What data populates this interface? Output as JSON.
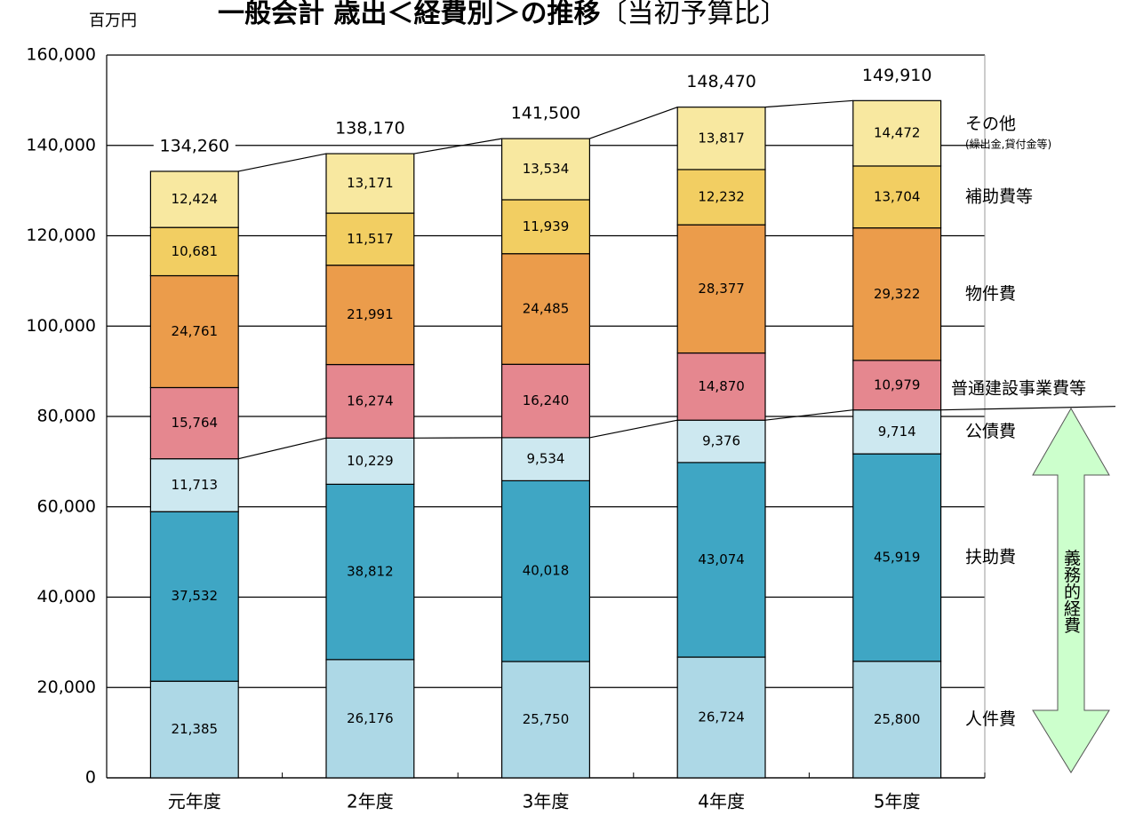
{
  "chart_data": {
    "type": "stacked_bar",
    "title": "一般会計 歳出＜経費別＞の推移",
    "subtitle": "〔当初予算比〕",
    "unit_label": "百万円",
    "categories": [
      "元年度",
      "2年度",
      "3年度",
      "4年度",
      "5年度"
    ],
    "ylim": [
      0,
      160000
    ],
    "yticks": [
      0,
      {
        "value": 20000,
        "label": "20,000"
      },
      {
        "value": 40000,
        "label": "40,000"
      },
      {
        "value": 60000,
        "label": "60,000"
      },
      {
        "value": 80000,
        "label": "80,000"
      },
      {
        "value": 100000,
        "label": "100,000"
      },
      {
        "value": 120000,
        "label": "120,000"
      },
      {
        "value": 140000,
        "label": "140,000"
      },
      {
        "value": 160000,
        "label": "160,000"
      }
    ],
    "grid": true,
    "series": [
      {
        "name": "人件費",
        "color": "#add8e6",
        "values": [
          21385,
          26176,
          25750,
          26724,
          25800
        ],
        "value_labels": [
          "21,385",
          "26,176",
          "25,750",
          "26,724",
          "25,800"
        ]
      },
      {
        "name": "扶助費",
        "color": "#3fa6c4",
        "values": [
          37532,
          38812,
          40018,
          43074,
          45919
        ],
        "value_labels": [
          "37,532",
          "38,812",
          "40,018",
          "43,074",
          "45,919"
        ]
      },
      {
        "name": "公債費",
        "color": "#cde8f0",
        "values": [
          11713,
          10229,
          9534,
          9376,
          9714
        ],
        "value_labels": [
          "11,713",
          "10,229",
          "9,534",
          "9,376",
          "9,714"
        ]
      },
      {
        "name": "普通建設事業費等",
        "color": "#e5878f",
        "values": [
          15764,
          16274,
          16240,
          14870,
          10979
        ],
        "value_labels": [
          "15,764",
          "16,274",
          "16,240",
          "14,870",
          "10,979"
        ]
      },
      {
        "name": "物件費",
        "color": "#eb9c4b",
        "values": [
          24761,
          21991,
          24485,
          28377,
          29322
        ],
        "value_labels": [
          "24,761",
          "21,991",
          "24,485",
          "28,377",
          "29,322"
        ]
      },
      {
        "name": "補助費等",
        "color": "#f2ce62",
        "values": [
          10681,
          11517,
          11939,
          12232,
          13704
        ],
        "value_labels": [
          "10,681",
          "11,517",
          "11,939",
          "12,232",
          "13,704"
        ]
      },
      {
        "name": "その他",
        "note": "(繰出金,貸付金等)",
        "color": "#f8e8a0",
        "values": [
          12424,
          13171,
          13534,
          13817,
          14472
        ],
        "value_labels": [
          "12,424",
          "13,171",
          "13,534",
          "13,817",
          "14,472"
        ]
      }
    ],
    "totals": [
      134260,
      138170,
      141500,
      148470,
      149910
    ],
    "total_labels": [
      "134,260",
      "138,170",
      "141,500",
      "148,470",
      "149,910"
    ],
    "mandatory_label": "義務的経費",
    "mandatory_series_count": 3
  }
}
